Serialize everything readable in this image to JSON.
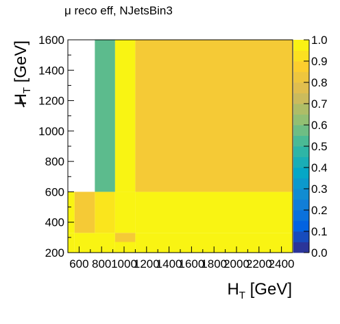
{
  "chart_data": {
    "type": "heatmap",
    "title": "μ reco eff, NJetsBin3",
    "xlabel": "H",
    "xlabel_sub": "T",
    "xlabel_unit": " [GeV]",
    "ylabel": "H",
    "ylabel_sub": "T",
    "ylabel_unit": " [GeV]",
    "xlim": [
      500,
      2500
    ],
    "ylim": [
      200,
      1600
    ],
    "zlim": [
      0,
      1
    ],
    "x_ticks": [
      600,
      800,
      1000,
      1200,
      1400,
      1600,
      1800,
      2000,
      2200,
      2400
    ],
    "x_tick_labels": [
      "600",
      "800",
      "1000",
      "1200",
      "1400",
      "1600",
      "1800",
      "2000",
      "2200",
      "2400"
    ],
    "y_ticks": [
      200,
      400,
      600,
      800,
      1000,
      1200,
      1400,
      1600
    ],
    "y_tick_labels": [
      "200",
      "400",
      "600",
      "800",
      "1000",
      "1200",
      "1400",
      "1600"
    ],
    "z_ticks": [
      0,
      0.1,
      0.2,
      0.3,
      0.4,
      0.5,
      0.6,
      0.7,
      0.8,
      0.9,
      1
    ],
    "z_tick_labels": [
      "0.0",
      "0.1",
      "0.2",
      "0.3",
      "0.4",
      "0.5",
      "0.6",
      "0.7",
      "0.8",
      "0.9",
      "1.0"
    ],
    "palette": [
      "#352a87",
      "#0363e1",
      "#1485d4",
      "#06a7c6",
      "#38b99e",
      "#92bf73",
      "#d9ba56",
      "#fcce2e",
      "#f9fb0e"
    ],
    "cells": [
      {
        "x0": 500,
        "x1": 560,
        "y0": 200,
        "y1": 270,
        "value": 0.98
      },
      {
        "x0": 560,
        "x1": 920,
        "y0": 200,
        "y1": 270,
        "value": 0.98
      },
      {
        "x0": 920,
        "x1": 1100,
        "y0": 200,
        "y1": 270,
        "value": 0.98
      },
      {
        "x0": 1100,
        "x1": 2500,
        "y0": 200,
        "y1": 270,
        "value": 0.98
      },
      {
        "x0": 500,
        "x1": 560,
        "y0": 270,
        "y1": 330,
        "value": 0.98
      },
      {
        "x0": 560,
        "x1": 920,
        "y0": 270,
        "y1": 330,
        "value": 0.98
      },
      {
        "x0": 920,
        "x1": 1100,
        "y0": 270,
        "y1": 330,
        "value": 0.85
      },
      {
        "x0": 1100,
        "x1": 2500,
        "y0": 270,
        "y1": 330,
        "value": 0.98
      },
      {
        "x0": 500,
        "x1": 560,
        "y0": 330,
        "y1": 600,
        "value": 0.98
      },
      {
        "x0": 560,
        "x1": 740,
        "y0": 330,
        "y1": 600,
        "value": 0.85
      },
      {
        "x0": 740,
        "x1": 920,
        "y0": 330,
        "y1": 600,
        "value": 0.94
      },
      {
        "x0": 920,
        "x1": 1100,
        "y0": 330,
        "y1": 600,
        "value": 0.98
      },
      {
        "x0": 1100,
        "x1": 2500,
        "y0": 330,
        "y1": 600,
        "value": 0.98
      },
      {
        "x0": 740,
        "x1": 920,
        "y0": 600,
        "y1": 1600,
        "value": 0.55
      },
      {
        "x0": 920,
        "x1": 1100,
        "y0": 600,
        "y1": 1600,
        "value": 0.98
      },
      {
        "x0": 1100,
        "x1": 2500,
        "y0": 600,
        "y1": 1600,
        "value": 0.85
      }
    ]
  }
}
